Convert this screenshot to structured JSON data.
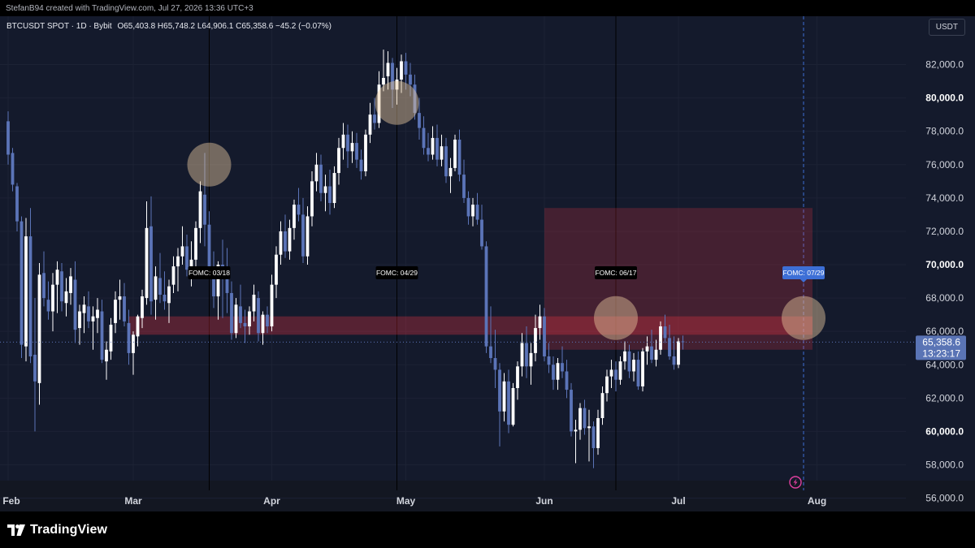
{
  "header": {
    "credit": "StefanB94 created with TradingView.com, Jul 27, 2026 13:36 UTC+3"
  },
  "legend": {
    "symbol": "BTCUSDT SPOT · 1D · Bybit",
    "ohlc": "O65,403.8 H65,748.2 L64,906.1 C65,358.6 −45.2 (−0.07%)"
  },
  "currency_button": "USDT",
  "footer": {
    "brand": "TradingView"
  },
  "colors": {
    "up": "#ffffff",
    "down": "#5b74b8",
    "zone": "#f23645",
    "marker": "#3d6fd6",
    "highlight": "#e8c9a0"
  },
  "chart_data": {
    "type": "candlestick",
    "y_ticks": [
      "82,000.0",
      "80,000.0",
      "78,000.0",
      "76,000.0",
      "74,000.0",
      "72,000.0",
      "70,000.0",
      "68,000.0",
      "66,000.0",
      "64,000.0",
      "62,000.0",
      "60,000.0",
      "58,000.0",
      "56,000.0"
    ],
    "ylim": [
      55200,
      84900
    ],
    "x_labels": [
      {
        "label": "Feb",
        "date": "2026-02-01"
      },
      {
        "label": "Mar",
        "date": "2026-03-01"
      },
      {
        "label": "Apr",
        "date": "2026-04-01"
      },
      {
        "label": "May",
        "date": "2026-05-01"
      },
      {
        "label": "Jun",
        "date": "2026-06-01"
      },
      {
        "label": "Jul",
        "date": "2026-07-01"
      },
      {
        "label": "Aug",
        "date": "2026-08-01"
      }
    ],
    "start_date": "2026-02-01",
    "bold_ticks": [
      "80,000.0",
      "70,000.0",
      "60,000.0"
    ],
    "last_price": {
      "value": 65358.6,
      "label": "65,358.6",
      "countdown": "13:23:17"
    },
    "series": [
      {
        "name": "BTCUSDT",
        "ohlc": [
          [
            78600,
            79200,
            76000,
            76600
          ],
          [
            76700,
            77000,
            74400,
            74800
          ],
          [
            74700,
            74900,
            72000,
            72600
          ],
          [
            72600,
            72900,
            64400,
            65200
          ],
          [
            65100,
            72800,
            64200,
            71700
          ],
          [
            71700,
            73400,
            64100,
            64500
          ],
          [
            64600,
            68000,
            60000,
            63000
          ],
          [
            62900,
            70100,
            61600,
            69400
          ],
          [
            69500,
            70800,
            67500,
            68000
          ],
          [
            67900,
            69000,
            66700,
            67200
          ],
          [
            67200,
            69500,
            66000,
            68800
          ],
          [
            68800,
            70200,
            67100,
            69700
          ],
          [
            69600,
            70100,
            67200,
            67800
          ],
          [
            67700,
            69200,
            66900,
            68400
          ],
          [
            68300,
            69800,
            67600,
            69300
          ],
          [
            69100,
            70200,
            65300,
            66100
          ],
          [
            66200,
            67600,
            65200,
            67200
          ],
          [
            67100,
            68100,
            65900,
            67600
          ],
          [
            67500,
            68400,
            66200,
            66600
          ],
          [
            66600,
            67500,
            64900,
            66900
          ],
          [
            66800,
            68000,
            65900,
            67300
          ],
          [
            67200,
            67900,
            64100,
            64300
          ],
          [
            64200,
            65400,
            63100,
            64900
          ],
          [
            64800,
            66800,
            64300,
            66400
          ],
          [
            66500,
            68400,
            65900,
            67900
          ],
          [
            67900,
            69100,
            66700,
            68100
          ],
          [
            68100,
            68900,
            66300,
            66600
          ],
          [
            66500,
            67300,
            64000,
            64700
          ],
          [
            64700,
            66000,
            63400,
            65800
          ],
          [
            65700,
            67000,
            65100,
            66900
          ],
          [
            66800,
            68500,
            66200,
            68100
          ],
          [
            68000,
            73800,
            67600,
            72200
          ],
          [
            72300,
            74100,
            67000,
            67800
          ],
          [
            67900,
            69900,
            66700,
            69300
          ],
          [
            69200,
            70700,
            67700,
            68200
          ],
          [
            68200,
            69600,
            67300,
            67800
          ],
          [
            67700,
            69100,
            66500,
            68700
          ],
          [
            68800,
            70500,
            68300,
            69900
          ],
          [
            69900,
            71000,
            68400,
            70500
          ],
          [
            70500,
            72300,
            70000,
            71100
          ],
          [
            71100,
            71800,
            69300,
            69700
          ],
          [
            69700,
            71400,
            68700,
            70300
          ],
          [
            70300,
            72600,
            69800,
            72200
          ],
          [
            72200,
            75000,
            71300,
            74400
          ],
          [
            74200,
            76700,
            71100,
            72400
          ],
          [
            72400,
            73200,
            69200,
            69900
          ],
          [
            69900,
            70800,
            67400,
            68100
          ],
          [
            68100,
            70200,
            66700,
            70000
          ],
          [
            70000,
            71500,
            66800,
            69600
          ],
          [
            69600,
            71000,
            67100,
            68300
          ],
          [
            68300,
            69000,
            65500,
            65900
          ],
          [
            65900,
            68000,
            65600,
            67600
          ],
          [
            67500,
            68800,
            66200,
            66500
          ],
          [
            66500,
            67300,
            65300,
            66300
          ],
          [
            66300,
            67500,
            65800,
            67200
          ],
          [
            67200,
            68800,
            66600,
            68200
          ],
          [
            68000,
            68400,
            65400,
            65900
          ],
          [
            65900,
            67200,
            65200,
            67000
          ],
          [
            67000,
            67500,
            65900,
            66300
          ],
          [
            66300,
            69400,
            66000,
            68800
          ],
          [
            68800,
            71100,
            68000,
            70600
          ],
          [
            70600,
            72600,
            70000,
            72000
          ],
          [
            72000,
            73000,
            70400,
            70800
          ],
          [
            70800,
            72700,
            70300,
            72200
          ],
          [
            72200,
            73900,
            71500,
            73600
          ],
          [
            73600,
            74600,
            72600,
            73000
          ],
          [
            73000,
            74000,
            70100,
            70500
          ],
          [
            70500,
            73500,
            70000,
            72900
          ],
          [
            72900,
            75600,
            72300,
            75000
          ],
          [
            75000,
            76700,
            74400,
            76000
          ],
          [
            76000,
            76600,
            73800,
            74300
          ],
          [
            74300,
            75400,
            73200,
            74700
          ],
          [
            74700,
            75700,
            73000,
            73700
          ],
          [
            73700,
            75900,
            73400,
            75500
          ],
          [
            75500,
            77600,
            74800,
            77000
          ],
          [
            77000,
            78500,
            76300,
            77800
          ],
          [
            77800,
            78400,
            75800,
            76800
          ],
          [
            76800,
            78000,
            76100,
            77300
          ],
          [
            77300,
            77900,
            75800,
            76300
          ],
          [
            76300,
            76900,
            75100,
            75600
          ],
          [
            75600,
            78100,
            75300,
            77800
          ],
          [
            77800,
            79700,
            77300,
            79000
          ],
          [
            79000,
            80000,
            78100,
            78500
          ],
          [
            78500,
            81600,
            78200,
            80800
          ],
          [
            80800,
            82900,
            80400,
            81200
          ],
          [
            81300,
            82800,
            80500,
            82100
          ],
          [
            82100,
            82400,
            79400,
            80500
          ],
          [
            80500,
            81800,
            79600,
            81100
          ],
          [
            81100,
            82600,
            80300,
            82200
          ],
          [
            82200,
            82700,
            80500,
            81400
          ],
          [
            81400,
            82100,
            80100,
            80800
          ],
          [
            80800,
            81400,
            78700,
            79100
          ],
          [
            79100,
            80000,
            77500,
            78200
          ],
          [
            78200,
            78900,
            76600,
            77000
          ],
          [
            77000,
            77900,
            76200,
            76600
          ],
          [
            76600,
            78300,
            76300,
            77600
          ],
          [
            77600,
            78400,
            75900,
            76300
          ],
          [
            76300,
            77800,
            75900,
            77100
          ],
          [
            77100,
            77600,
            74900,
            75300
          ],
          [
            75300,
            76400,
            74300,
            75800
          ],
          [
            75800,
            77800,
            75600,
            77500
          ],
          [
            77500,
            78100,
            75000,
            75400
          ],
          [
            75400,
            76300,
            73700,
            74000
          ],
          [
            74000,
            74400,
            72400,
            72900
          ],
          [
            72900,
            74000,
            72300,
            73600
          ],
          [
            73600,
            74300,
            72400,
            72700
          ],
          [
            72700,
            73600,
            70900,
            71100
          ],
          [
            71100,
            71400,
            64700,
            65100
          ],
          [
            65100,
            67500,
            64100,
            64400
          ],
          [
            64400,
            66100,
            62600,
            63700
          ],
          [
            63700,
            64100,
            59100,
            61200
          ],
          [
            61200,
            63500,
            60600,
            63000
          ],
          [
            63000,
            63700,
            59900,
            60400
          ],
          [
            60400,
            62900,
            60300,
            62600
          ],
          [
            62600,
            64200,
            61900,
            63900
          ],
          [
            63900,
            65900,
            63300,
            65300
          ],
          [
            65300,
            66300,
            63200,
            63900
          ],
          [
            63900,
            65300,
            62800,
            64700
          ],
          [
            64700,
            67000,
            64200,
            66200
          ],
          [
            66200,
            67600,
            65500,
            66900
          ],
          [
            66900,
            67400,
            64200,
            64500
          ],
          [
            64500,
            65300,
            63500,
            64000
          ],
          [
            64000,
            64500,
            62500,
            63100
          ],
          [
            63100,
            64400,
            62500,
            64100
          ],
          [
            64100,
            65100,
            63200,
            63600
          ],
          [
            63600,
            64300,
            62000,
            62500
          ],
          [
            62500,
            62900,
            59700,
            60000
          ],
          [
            60000,
            60700,
            58100,
            60100
          ],
          [
            60100,
            61700,
            59500,
            61400
          ],
          [
            61400,
            61900,
            59800,
            60200
          ],
          [
            60200,
            61300,
            58200,
            60300
          ],
          [
            60300,
            60600,
            57800,
            59000
          ],
          [
            59000,
            61300,
            58600,
            60800
          ],
          [
            60800,
            62700,
            60400,
            62300
          ],
          [
            62300,
            63700,
            61800,
            63300
          ],
          [
            63300,
            64300,
            62600,
            63700
          ],
          [
            63700,
            64200,
            62400,
            63100
          ],
          [
            63100,
            64500,
            62800,
            64200
          ],
          [
            64200,
            65400,
            63700,
            64800
          ],
          [
            64800,
            65200,
            63200,
            63600
          ],
          [
            63600,
            64700,
            63000,
            64300
          ],
          [
            64300,
            64800,
            62500,
            62700
          ],
          [
            62700,
            65000,
            62400,
            64800
          ],
          [
            64800,
            65700,
            64000,
            65100
          ],
          [
            65100,
            66100,
            64100,
            64300
          ],
          [
            64300,
            65500,
            63900,
            64900
          ],
          [
            64900,
            66600,
            64600,
            66300
          ],
          [
            66300,
            67000,
            65300,
            65600
          ],
          [
            65600,
            66400,
            64300,
            64500
          ],
          [
            64500,
            65700,
            63700,
            64000
          ],
          [
            64000,
            65600,
            63800,
            65400
          ],
          [
            65400,
            65748,
            64906,
            65358
          ]
        ]
      }
    ],
    "zones": [
      {
        "from": "2026-02-28",
        "to": "2026-07-31",
        "top": 66900,
        "bottom": 65800
      },
      {
        "from": "2026-06-01",
        "to": "2026-07-31",
        "top": 73400,
        "bottom": 64900
      }
    ],
    "fomc": [
      {
        "label": "FOMC: 03/18",
        "date": "2026-03-18",
        "price": 76000,
        "show_line": true
      },
      {
        "label": "FOMC: 04/29",
        "date": "2026-04-29",
        "price": 79700,
        "show_line": true
      },
      {
        "label": "FOMC: 06/17",
        "date": "2026-06-17",
        "price": 66800,
        "show_line": true
      },
      {
        "label": "FOMC: 07/29",
        "date": "2026-07-29",
        "price": 66800,
        "show_line": false,
        "active": true
      }
    ]
  }
}
